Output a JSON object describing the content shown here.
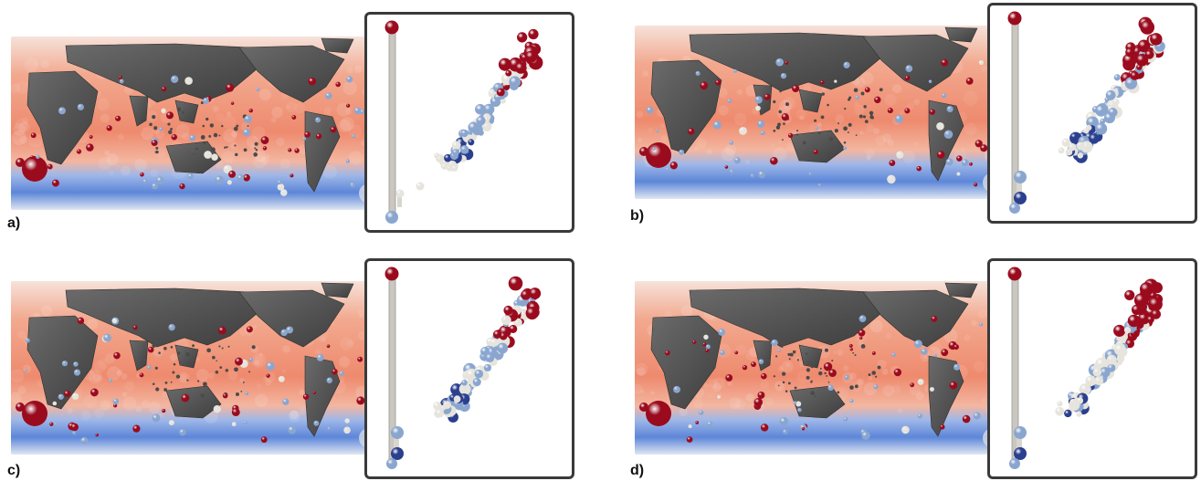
{
  "panels": [
    {
      "label": "a)",
      "seed": 11
    },
    {
      "label": "b)",
      "seed": 23
    },
    {
      "label": "c)",
      "seed": 37
    },
    {
      "label": "d)",
      "seed": 53
    }
  ],
  "colors": {
    "warm_sea": "#ee8a6e",
    "cold_sea": "#5d86d8",
    "land": "#5a5a5a",
    "sphere_red": "#9a0b1e",
    "sphere_blue_light": "#8aa6cf",
    "sphere_blue_dark": "#2b3f8f",
    "sphere_white": "#e6e4dc",
    "inset_border": "#3a3a3a"
  }
}
